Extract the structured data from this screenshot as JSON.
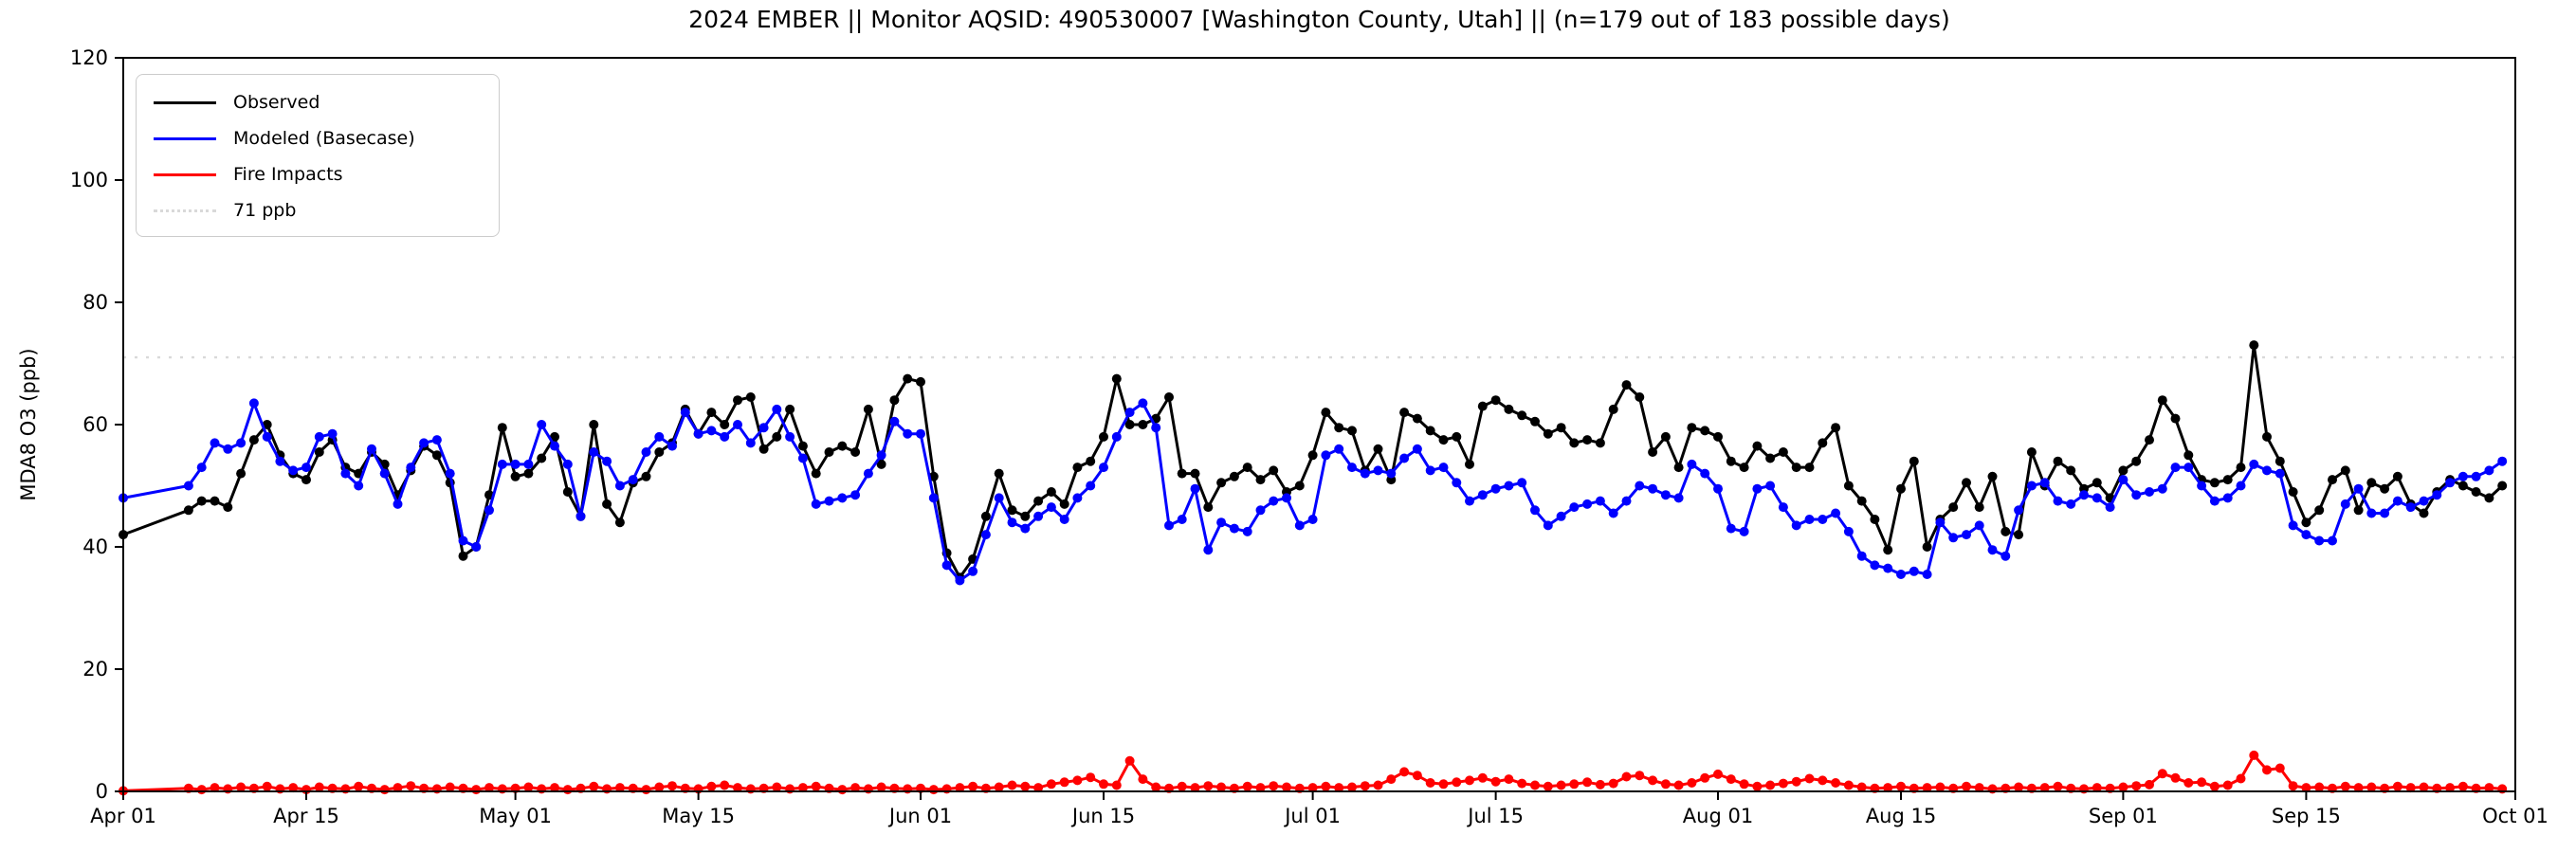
{
  "chart_data": {
    "type": "line",
    "title": "2024 EMBER || Monitor AQSID: 490530007 [Washington County, Utah] || (n=179 out of 183 possible days)",
    "ylabel": "MDA8 O3 (ppb)",
    "xlabel": "",
    "ylim": [
      0,
      120
    ],
    "y_ticks": [
      0,
      20,
      40,
      60,
      80,
      100,
      120
    ],
    "x_start_label": "Apr 01",
    "x_end_label": "Oct 01",
    "n_days": 183,
    "n_observed": 179,
    "missing_day_indices": [
      1,
      2,
      3,
      4
    ],
    "grid": "off",
    "legend_position": "upper-left",
    "x_tick_labels": [
      "Apr 01",
      "Apr 15",
      "May 01",
      "May 15",
      "Jun 01",
      "Jun 15",
      "Jul 01",
      "Jul 15",
      "Aug 01",
      "Aug 15",
      "Sep 01",
      "Sep 15",
      "Oct 01"
    ],
    "x_tick_day_index": [
      0,
      14,
      30,
      44,
      61,
      75,
      91,
      105,
      122,
      136,
      153,
      167,
      183
    ],
    "threshold": {
      "value": 71,
      "label": "71 ppb",
      "color": "#d9d9d9",
      "style": "dotted"
    },
    "legend": [
      {
        "label": "Observed",
        "color": "#000000",
        "style": "solid"
      },
      {
        "label": "Modeled (Basecase)",
        "color": "#0000ff",
        "style": "solid"
      },
      {
        "label": "Fire Impacts",
        "color": "#ff0000",
        "style": "solid"
      },
      {
        "label": "71 ppb",
        "color": "#d9d9d9",
        "style": "dotted"
      }
    ],
    "series": [
      {
        "name": "Observed",
        "color": "#000000",
        "values": [
          42,
          null,
          null,
          null,
          null,
          46,
          47.5,
          47.5,
          46.5,
          52,
          57.5,
          60,
          55,
          52,
          51,
          55.5,
          57.5,
          53,
          52,
          55.5,
          53.5,
          48.5,
          52.5,
          56.5,
          55,
          50.5,
          38.5,
          40,
          48.5,
          59.5,
          51.5,
          52,
          54.5,
          58,
          49,
          45,
          60,
          47,
          44,
          50.5,
          51.5,
          55.5,
          57,
          62.5,
          58.5,
          62,
          60,
          64,
          64.5,
          56,
          58,
          62.5,
          56.5,
          52,
          55.5,
          56.5,
          55.5,
          62.5,
          53.5,
          64,
          67.5,
          67,
          51.5,
          39,
          35,
          38,
          45,
          52,
          46,
          45,
          47.5,
          49,
          47,
          53,
          54,
          58,
          67.5,
          60,
          60,
          61,
          64.5,
          52,
          52,
          46.5,
          50.5,
          51.5,
          53,
          51,
          52.5,
          49,
          50,
          55,
          62,
          59.5,
          59,
          52.5,
          56,
          51,
          62,
          61,
          59,
          57.5,
          58,
          53.5,
          63,
          64,
          62.5,
          61.5,
          60.5,
          58.5,
          59.5,
          57,
          57.5,
          57,
          62.5,
          66.5,
          64.5,
          55.5,
          58,
          53,
          59.5,
          59,
          58,
          54,
          53,
          56.5,
          54.5,
          55.5,
          53,
          53,
          57,
          59.5,
          50,
          47.5,
          44.5,
          39.5,
          49.5,
          54,
          40,
          44.5,
          46.5,
          50.5,
          46.5,
          51.5,
          42.5,
          42,
          55.5,
          50,
          54,
          52.5,
          49.5,
          50.5,
          48,
          52.5,
          54,
          57.5,
          64,
          61,
          55,
          51,
          50.5,
          51,
          53,
          73,
          58,
          54,
          49,
          44,
          46,
          51,
          52.5,
          46,
          50.5,
          49.5,
          51.5,
          47,
          45.5,
          49,
          51,
          50,
          49,
          48,
          50
        ]
      },
      {
        "name": "Modeled (Basecase)",
        "color": "#0000ff",
        "values": [
          48,
          null,
          null,
          null,
          null,
          50,
          53,
          57,
          56,
          57,
          63.5,
          58,
          54,
          52.5,
          53,
          58,
          58.5,
          52,
          50,
          56,
          52,
          47,
          53,
          57,
          57.5,
          52,
          41,
          40,
          46,
          53.5,
          53.5,
          53.5,
          60,
          56.5,
          53.5,
          45,
          55.5,
          54,
          50,
          51,
          55.5,
          58,
          56.5,
          62,
          58.5,
          59,
          58,
          60,
          57,
          59.5,
          62.5,
          58,
          54.5,
          47,
          47.5,
          48,
          48.5,
          52,
          55,
          60.5,
          58.5,
          58.5,
          48,
          37,
          34.5,
          36,
          42,
          48,
          44,
          43,
          45,
          46.5,
          44.5,
          48,
          50,
          53,
          58,
          62,
          63.5,
          59.5,
          43.5,
          44.5,
          49.5,
          39.5,
          44,
          43,
          42.5,
          46,
          47.5,
          48,
          43.5,
          44.5,
          55,
          56,
          53,
          52,
          52.5,
          52,
          54.5,
          56,
          52.5,
          53,
          50.5,
          47.5,
          48.5,
          49.5,
          50,
          50.5,
          46,
          43.5,
          45,
          46.5,
          47,
          47.5,
          45.5,
          47.5,
          50,
          49.5,
          48.5,
          48,
          53.5,
          52,
          49.5,
          43,
          42.5,
          49.5,
          50,
          46.5,
          43.5,
          44.5,
          44.5,
          45.5,
          42.5,
          38.5,
          37,
          36.5,
          35.5,
          36,
          35.5,
          44,
          41.5,
          42,
          43.5,
          39.5,
          38.5,
          46,
          50,
          50.5,
          47.5,
          47,
          48.5,
          48,
          46.5,
          51,
          48.5,
          49,
          49.5,
          53,
          53,
          50,
          47.5,
          48,
          50,
          53.5,
          52.5,
          52,
          43.5,
          42,
          41,
          41,
          47,
          49.5,
          45.5,
          45.5,
          47.5,
          46.5,
          47.5,
          48.5,
          50.5,
          51.5,
          51.5,
          52.5,
          54
        ]
      },
      {
        "name": "Fire Impacts",
        "color": "#ff0000",
        "values": [
          0.1,
          null,
          null,
          null,
          null,
          0.5,
          0.3,
          0.6,
          0.4,
          0.7,
          0.5,
          0.8,
          0.4,
          0.6,
          0.3,
          0.7,
          0.5,
          0.4,
          0.8,
          0.5,
          0.3,
          0.6,
          0.9,
          0.5,
          0.4,
          0.7,
          0.5,
          0.3,
          0.6,
          0.4,
          0.5,
          0.7,
          0.4,
          0.6,
          0.3,
          0.5,
          0.8,
          0.4,
          0.6,
          0.5,
          0.3,
          0.7,
          0.9,
          0.5,
          0.4,
          0.8,
          1.0,
          0.6,
          0.4,
          0.5,
          0.7,
          0.4,
          0.6,
          0.8,
          0.5,
          0.3,
          0.6,
          0.4,
          0.7,
          0.5,
          0.4,
          0.5,
          0.3,
          0.4,
          0.6,
          0.8,
          0.5,
          0.7,
          1.0,
          0.8,
          0.6,
          1.2,
          1.5,
          1.8,
          2.3,
          1.2,
          1.0,
          5.0,
          2.0,
          0.7,
          0.5,
          0.8,
          0.6,
          0.9,
          0.7,
          0.5,
          0.8,
          0.6,
          0.9,
          0.7,
          0.5,
          0.6,
          0.8,
          0.6,
          0.7,
          0.9,
          1.0,
          2.0,
          3.2,
          2.6,
          1.4,
          1.2,
          1.5,
          1.8,
          2.2,
          1.6,
          2.0,
          1.3,
          1.0,
          0.8,
          1.0,
          1.2,
          1.5,
          1.1,
          1.3,
          2.4,
          2.6,
          1.8,
          1.2,
          1.0,
          1.4,
          2.2,
          2.8,
          2.0,
          1.2,
          0.8,
          1.0,
          1.3,
          1.6,
          2.1,
          1.8,
          1.4,
          1.0,
          0.7,
          0.5,
          0.6,
          0.8,
          0.5,
          0.6,
          0.7,
          0.5,
          0.8,
          0.6,
          0.4,
          0.5,
          0.7,
          0.5,
          0.6,
          0.8,
          0.5,
          0.4,
          0.6,
          0.5,
          0.7,
          0.9,
          1.1,
          2.9,
          2.2,
          1.4,
          1.5,
          0.8,
          1.0,
          2.1,
          5.9,
          3.5,
          3.8,
          0.9,
          0.6,
          0.7,
          0.5,
          0.8,
          0.6,
          0.7,
          0.5,
          0.8,
          0.6,
          0.7,
          0.5,
          0.6,
          0.8,
          0.5,
          0.6,
          0.4
        ]
      }
    ]
  }
}
